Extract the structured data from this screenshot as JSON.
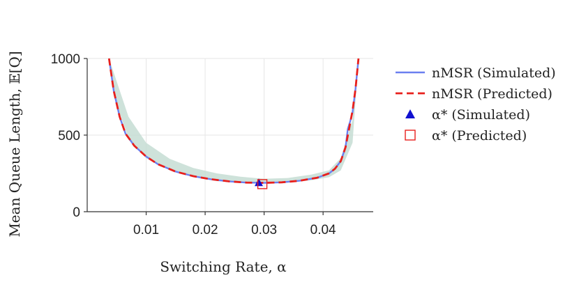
{
  "chart_data": {
    "type": "line",
    "title": "",
    "xlabel": "Switching Rate, α",
    "ylabel": "Mean Queue Length, 𝔼[Q]",
    "xlim": [
      0.0,
      0.0485
    ],
    "ylim": [
      0,
      1000
    ],
    "xticks": [
      0.01,
      0.02,
      0.03,
      0.04
    ],
    "xtick_labels": [
      "0.01",
      "0.02",
      "0.03",
      "0.04"
    ],
    "yticks": [
      0,
      500,
      1000
    ],
    "ytick_labels": [
      "0",
      "500",
      "1000"
    ],
    "grid": true,
    "legend_position": "right",
    "band": {
      "name": "uncertainty band",
      "color": "#c5ddd4",
      "x": [
        0.0037,
        0.005,
        0.007,
        0.01,
        0.014,
        0.018,
        0.022,
        0.026,
        0.03,
        0.034,
        0.038,
        0.041,
        0.043,
        0.045,
        0.046
      ],
      "lower": [
        1000,
        700,
        480,
        350,
        270,
        225,
        200,
        188,
        185,
        190,
        205,
        225,
        270,
        450,
        1000
      ],
      "upper": [
        1000,
        850,
        620,
        450,
        345,
        285,
        250,
        228,
        215,
        220,
        242,
        270,
        350,
        600,
        1000
      ]
    },
    "series": [
      {
        "name": "nMSR (Simulated)",
        "color": "#6b7ff0",
        "style": "solid",
        "x": [
          0.0037,
          0.0045,
          0.0055,
          0.0065,
          0.008,
          0.01,
          0.012,
          0.015,
          0.018,
          0.021,
          0.024,
          0.027,
          0.03,
          0.033,
          0.036,
          0.039,
          0.041,
          0.042,
          0.043,
          0.0438,
          0.0442,
          0.0446,
          0.045,
          0.0455,
          0.046
        ],
        "y": [
          1000,
          790,
          620,
          510,
          430,
          360,
          310,
          262,
          232,
          212,
          198,
          190,
          188,
          192,
          202,
          222,
          250,
          280,
          330,
          420,
          540,
          590,
          650,
          800,
          1000
        ]
      },
      {
        "name": "nMSR (Predicted)",
        "color": "#e8201c",
        "style": "dashed",
        "x": [
          0.0037,
          0.0045,
          0.0055,
          0.0065,
          0.008,
          0.01,
          0.012,
          0.015,
          0.018,
          0.021,
          0.024,
          0.027,
          0.03,
          0.033,
          0.036,
          0.039,
          0.041,
          0.042,
          0.043,
          0.0438,
          0.0445,
          0.045,
          0.0455,
          0.046
        ],
        "y": [
          1000,
          790,
          620,
          510,
          430,
          360,
          310,
          262,
          232,
          212,
          198,
          190,
          188,
          192,
          202,
          222,
          250,
          280,
          330,
          420,
          560,
          660,
          800,
          1000
        ]
      }
    ],
    "markers": [
      {
        "name": "α* (Simulated)",
        "symbol": "triangle",
        "color": "#1010d0",
        "x": 0.0291,
        "y": 190
      },
      {
        "name": "α* (Predicted)",
        "symbol": "square-open",
        "color": "#e8201c",
        "x": 0.0297,
        "y": 180
      }
    ],
    "legend": [
      {
        "label": "nMSR (Simulated)",
        "kind": "line-solid",
        "color": "#6b7ff0"
      },
      {
        "label": "nMSR (Predicted)",
        "kind": "line-dashed",
        "color": "#e8201c"
      },
      {
        "label": "α* (Simulated)",
        "kind": "triangle",
        "color": "#1010d0"
      },
      {
        "label": "α* (Predicted)",
        "kind": "square-open",
        "color": "#e8201c"
      }
    ]
  }
}
